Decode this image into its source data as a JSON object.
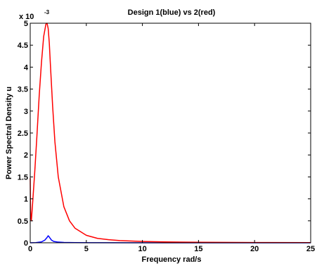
{
  "chart_data": {
    "type": "line",
    "title": "Design 1(blue) vs 2(red)",
    "xlabel": "Frequency rad/s",
    "ylabel": "Power Spectral Density u",
    "y_multiplier_base": "x 10",
    "y_multiplier_exp": "-3",
    "xlim": [
      0,
      25
    ],
    "ylim": [
      0,
      5
    ],
    "x_ticks": [
      0,
      5,
      10,
      15,
      20,
      25
    ],
    "x_tick_labels": [
      "0",
      "5",
      "10",
      "15",
      "20",
      "25"
    ],
    "y_ticks": [
      0,
      0.5,
      1,
      1.5,
      2,
      2.5,
      3,
      3.5,
      4,
      4.5,
      5
    ],
    "y_tick_labels": [
      "0",
      "0.5",
      "1",
      "1.5",
      "2",
      "2.5",
      "3",
      "3.5",
      "4",
      "4.5",
      "5"
    ],
    "grid": false,
    "series": [
      {
        "color": "#0000ff",
        "x": [
          0,
          0.5,
          1.0,
          1.3,
          1.5,
          1.6,
          1.7,
          1.9,
          2.1,
          2.5,
          3,
          4,
          6,
          10,
          15,
          20,
          25
        ],
        "y": [
          0,
          0.005,
          0.02,
          0.06,
          0.12,
          0.16,
          0.13,
          0.06,
          0.03,
          0.015,
          0.008,
          0.004,
          0.002,
          0.001,
          0.0005,
          0.0003,
          0.0002
        ]
      },
      {
        "color": "#ff0000",
        "x": [
          0,
          0.02,
          0.05,
          0.1,
          0.2,
          0.4,
          0.6,
          0.8,
          1.0,
          1.2,
          1.4,
          1.5,
          1.6,
          1.7,
          1.8,
          2.0,
          2.2,
          2.5,
          3.0,
          3.5,
          4.0,
          5.0,
          6.0,
          7.0,
          8.0,
          10.0,
          12.0,
          15.0,
          20.0,
          25.0
        ],
        "y": [
          1.47,
          0.9,
          0.6,
          0.5,
          0.85,
          1.6,
          2.45,
          3.35,
          4.1,
          4.7,
          4.98,
          5.0,
          4.88,
          4.55,
          4.05,
          3.1,
          2.3,
          1.5,
          0.82,
          0.5,
          0.33,
          0.17,
          0.1,
          0.07,
          0.05,
          0.03,
          0.02,
          0.012,
          0.006,
          0.003
        ]
      }
    ]
  }
}
